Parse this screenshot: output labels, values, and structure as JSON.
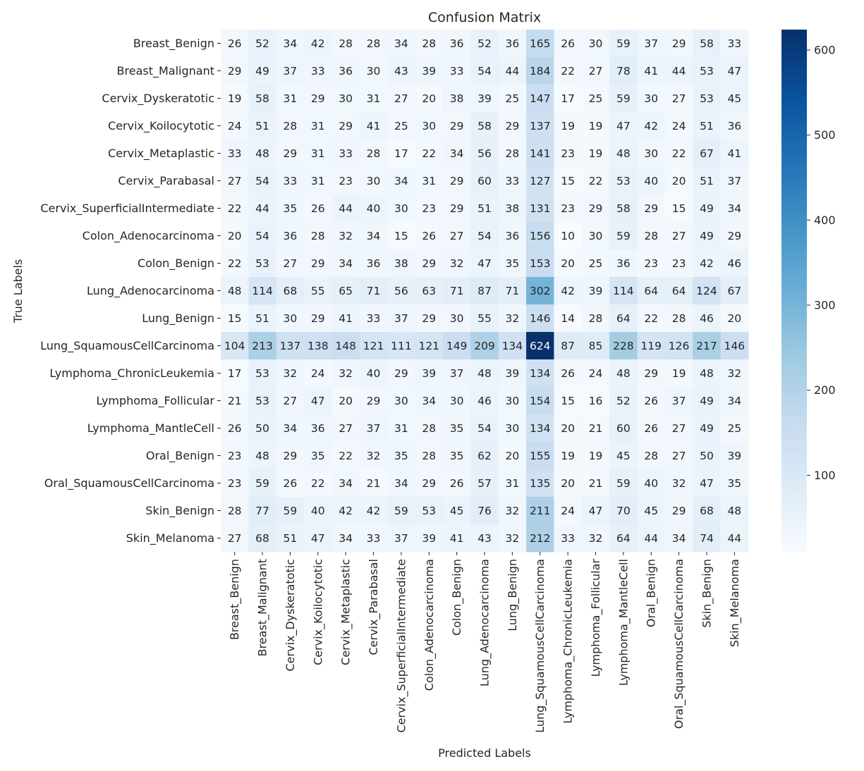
{
  "chart_data": {
    "type": "heatmap",
    "title": "Confusion Matrix",
    "xlabel": "Predicted Labels",
    "ylabel": "True Labels",
    "colormap": "Blues",
    "vmin": 10,
    "vmax": 624,
    "colorbar_ticks": [
      100,
      200,
      300,
      400,
      500,
      600
    ],
    "labels": [
      "Breast_Benign",
      "Breast_Malignant",
      "Cervix_Dyskeratotic",
      "Cervix_Koilocytotic",
      "Cervix_Metaplastic",
      "Cervix_Parabasal",
      "Cervix_SuperficialIntermediate",
      "Colon_Adenocarcinoma",
      "Colon_Benign",
      "Lung_Adenocarcinoma",
      "Lung_Benign",
      "Lung_SquamousCellCarcinoma",
      "Lymphoma_ChronicLeukemia",
      "Lymphoma_Follicular",
      "Lymphoma_MantleCell",
      "Oral_Benign",
      "Oral_SquamousCellCarcinoma",
      "Skin_Benign",
      "Skin_Melanoma"
    ],
    "matrix": [
      [
        26,
        52,
        34,
        42,
        28,
        28,
        34,
        28,
        36,
        52,
        36,
        165,
        26,
        30,
        59,
        37,
        29,
        58,
        33
      ],
      [
        29,
        49,
        37,
        33,
        36,
        30,
        43,
        39,
        33,
        54,
        44,
        184,
        22,
        27,
        78,
        41,
        44,
        53,
        47
      ],
      [
        19,
        58,
        31,
        29,
        30,
        31,
        27,
        20,
        38,
        39,
        25,
        147,
        17,
        25,
        59,
        30,
        27,
        53,
        45
      ],
      [
        24,
        51,
        28,
        31,
        29,
        41,
        25,
        30,
        29,
        58,
        29,
        137,
        19,
        19,
        47,
        42,
        24,
        51,
        36
      ],
      [
        33,
        48,
        29,
        31,
        33,
        28,
        17,
        22,
        34,
        56,
        28,
        141,
        23,
        19,
        48,
        30,
        22,
        67,
        41
      ],
      [
        27,
        54,
        33,
        31,
        23,
        30,
        34,
        31,
        29,
        60,
        33,
        127,
        15,
        22,
        53,
        40,
        20,
        51,
        37
      ],
      [
        22,
        44,
        35,
        26,
        44,
        40,
        30,
        23,
        29,
        51,
        38,
        131,
        23,
        29,
        58,
        29,
        15,
        49,
        34
      ],
      [
        20,
        54,
        36,
        28,
        32,
        34,
        15,
        26,
        27,
        54,
        36,
        156,
        10,
        30,
        59,
        28,
        27,
        49,
        29
      ],
      [
        22,
        53,
        27,
        29,
        34,
        36,
        38,
        29,
        32,
        47,
        35,
        153,
        20,
        25,
        36,
        23,
        23,
        42,
        46
      ],
      [
        48,
        114,
        68,
        55,
        65,
        71,
        56,
        63,
        71,
        87,
        71,
        302,
        42,
        39,
        114,
        64,
        64,
        124,
        67
      ],
      [
        15,
        51,
        30,
        29,
        41,
        33,
        37,
        29,
        30,
        55,
        32,
        146,
        14,
        28,
        64,
        22,
        28,
        46,
        20
      ],
      [
        104,
        213,
        137,
        138,
        148,
        121,
        111,
        121,
        149,
        209,
        134,
        624,
        87,
        85,
        228,
        119,
        126,
        217,
        146
      ],
      [
        17,
        53,
        32,
        24,
        32,
        40,
        29,
        39,
        37,
        48,
        39,
        134,
        26,
        24,
        48,
        29,
        19,
        48,
        32
      ],
      [
        21,
        53,
        27,
        47,
        20,
        29,
        30,
        34,
        30,
        46,
        30,
        154,
        15,
        16,
        52,
        26,
        37,
        49,
        34
      ],
      [
        26,
        50,
        34,
        36,
        27,
        37,
        31,
        28,
        35,
        54,
        30,
        134,
        20,
        21,
        60,
        26,
        27,
        49,
        25
      ],
      [
        23,
        48,
        29,
        35,
        22,
        32,
        35,
        28,
        35,
        62,
        20,
        155,
        19,
        19,
        45,
        28,
        27,
        50,
        39
      ],
      [
        23,
        59,
        26,
        22,
        34,
        21,
        34,
        29,
        26,
        57,
        31,
        135,
        20,
        21,
        59,
        40,
        32,
        47,
        35
      ],
      [
        28,
        77,
        59,
        40,
        42,
        42,
        59,
        53,
        45,
        76,
        32,
        211,
        24,
        47,
        70,
        45,
        29,
        68,
        48
      ],
      [
        27,
        68,
        51,
        47,
        34,
        33,
        37,
        39,
        41,
        43,
        32,
        212,
        33,
        32,
        64,
        44,
        34,
        74,
        44
      ]
    ]
  }
}
